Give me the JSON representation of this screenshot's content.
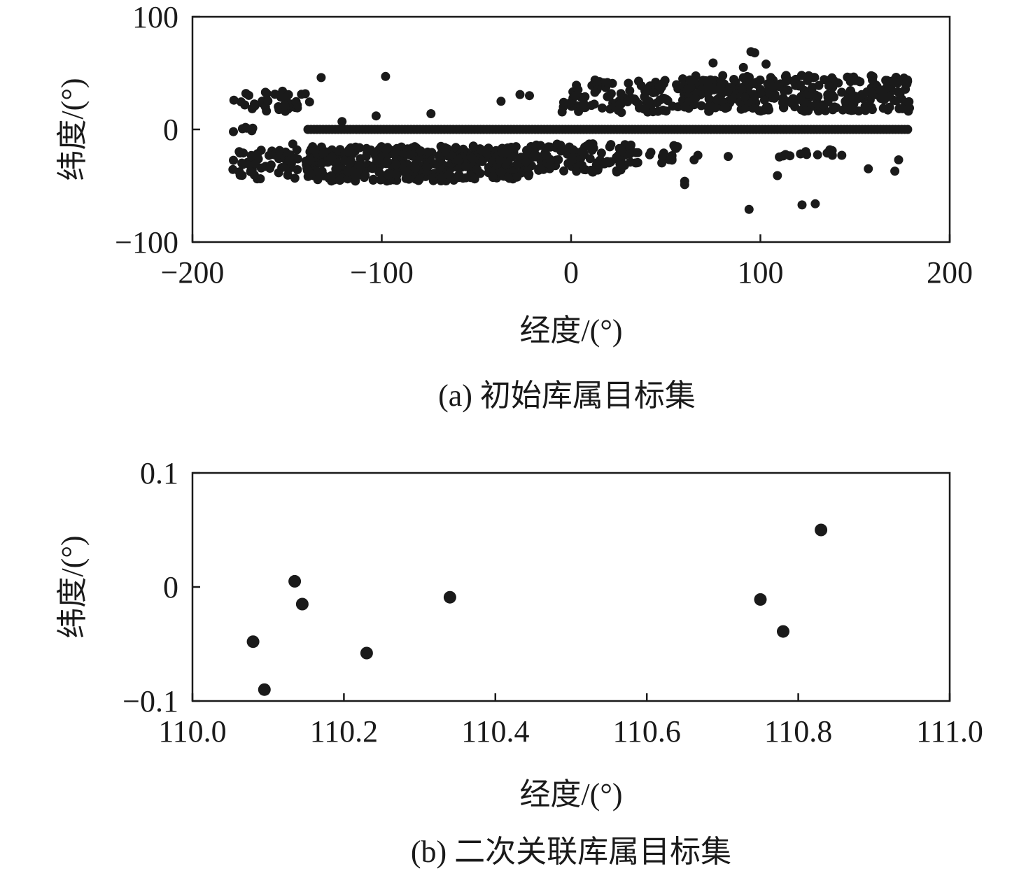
{
  "chart_data": [
    {
      "type": "scatter",
      "caption": "(a) 初始库属目标集",
      "xlabel": "经度/(°)",
      "ylabel": "纬度/(°)",
      "xlim": [
        -200,
        200
      ],
      "ylim": [
        -100,
        100
      ],
      "xticks": [
        -200,
        -100,
        0,
        100,
        200
      ],
      "yticks": [
        -100,
        0,
        100
      ],
      "xtick_labels": [
        "−200",
        "−100",
        "0",
        "100",
        "200"
      ],
      "ytick_labels": [
        "−100",
        "0",
        "100"
      ],
      "marker_color": "#1a1a1a",
      "points": [
        [
          -132,
          46
        ],
        [
          -98,
          47
        ],
        [
          -103,
          12
        ],
        [
          -74,
          14
        ],
        [
          -121,
          7
        ],
        [
          -147,
          -13
        ],
        [
          95,
          69
        ],
        [
          97,
          68
        ],
        [
          103,
          58
        ],
        [
          75,
          59
        ],
        [
          91,
          55
        ],
        [
          59,
          45
        ],
        [
          60,
          -46
        ],
        [
          60,
          -49
        ],
        [
          94,
          -71
        ],
        [
          122,
          -67
        ],
        [
          129,
          -66
        ],
        [
          109,
          -41
        ],
        [
          83,
          -24
        ],
        [
          67,
          -23
        ],
        [
          65,
          -27
        ],
        [
          138,
          -23
        ],
        [
          143,
          -23
        ],
        [
          157,
          -35
        ],
        [
          171,
          -37
        ],
        [
          173,
          -27
        ],
        [
          -37,
          25
        ],
        [
          -27,
          31
        ],
        [
          -22,
          30
        ]
      ],
      "bands": [
        {
          "lon": [
            -179,
            -137
          ],
          "lat": [
            16,
            34
          ],
          "n": 40
        },
        {
          "lon": [
            -179,
            -136
          ],
          "lat": [
            -44,
            -18
          ],
          "n": 60
        },
        {
          "lon": [
            -140,
            -60
          ],
          "lat": [
            -46,
            -15
          ],
          "n": 280
        },
        {
          "lon": [
            -60,
            -20
          ],
          "lat": [
            -44,
            -14
          ],
          "n": 130
        },
        {
          "lon": [
            -20,
            30
          ],
          "lat": [
            -38,
            -12
          ],
          "n": 100
        },
        {
          "lon": [
            30,
            58
          ],
          "lat": [
            -30,
            -13
          ],
          "n": 25
        },
        {
          "lon": [
            -5,
            60
          ],
          "lat": [
            15,
            44
          ],
          "n": 110
        },
        {
          "lon": [
            60,
            180
          ],
          "lat": [
            16,
            48
          ],
          "n": 300
        },
        {
          "lon": [
            110,
            145
          ],
          "lat": [
            -30,
            -18
          ],
          "n": 12
        },
        {
          "lon": [
            -179,
            -168
          ],
          "lat": [
            -2,
            2
          ],
          "n": 6
        }
      ],
      "equator_band": {
        "lon": [
          -139,
          179
        ],
        "lat": 0,
        "step": 1.6
      }
    },
    {
      "type": "scatter",
      "caption": "(b) 二次关联库属目标集",
      "xlabel": "经度/(°)",
      "ylabel": "纬度/(°)",
      "xlim": [
        110.0,
        111.0
      ],
      "ylim": [
        -0.1,
        0.1
      ],
      "xticks": [
        110.0,
        110.2,
        110.4,
        110.6,
        110.8,
        111.0
      ],
      "yticks": [
        -0.1,
        0,
        0.1
      ],
      "xtick_labels": [
        "110.0",
        "110.2",
        "110.4",
        "110.6",
        "110.8",
        "111.0"
      ],
      "ytick_labels": [
        "−0.1",
        "0",
        "0.1"
      ],
      "marker_color": "#1a1a1a",
      "points": [
        [
          110.08,
          -0.048
        ],
        [
          110.095,
          -0.09
        ],
        [
          110.135,
          0.005
        ],
        [
          110.145,
          -0.015
        ],
        [
          110.23,
          -0.058
        ],
        [
          110.34,
          -0.009
        ],
        [
          110.75,
          -0.011
        ],
        [
          110.78,
          -0.039
        ],
        [
          110.83,
          0.05
        ]
      ]
    }
  ]
}
